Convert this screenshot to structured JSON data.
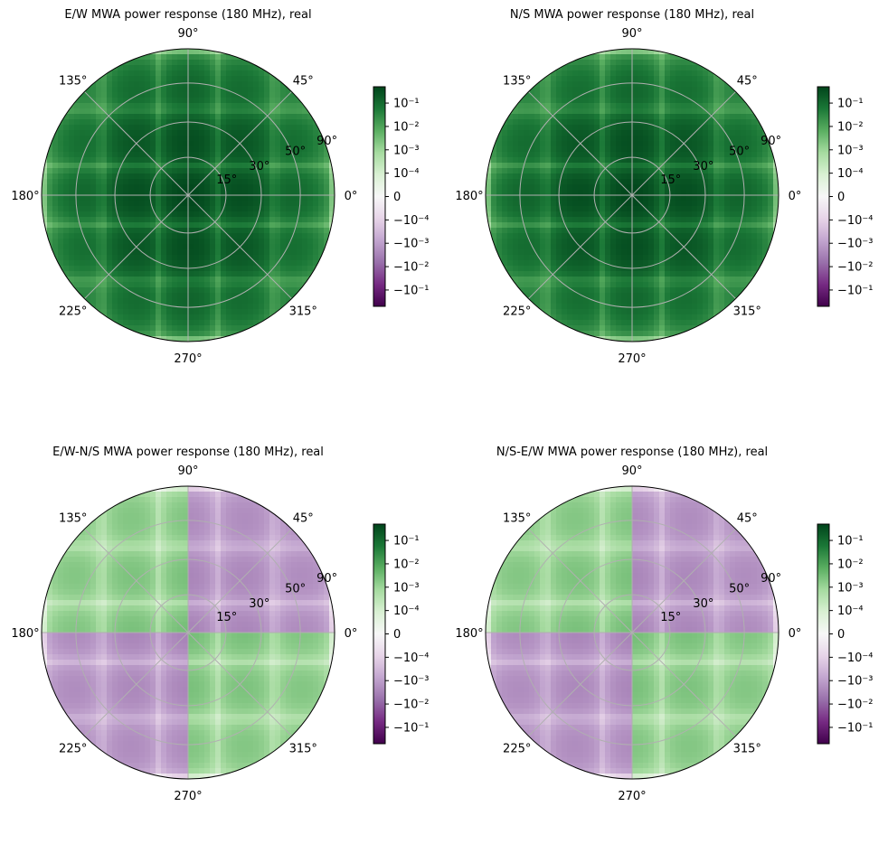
{
  "chart_data": [
    {
      "type": "heatmap",
      "projection": "polar",
      "title": "E/W MWA power response (180 MHz), real",
      "angle_ticks": [
        "90°",
        "135°",
        "180°",
        "225°",
        "270°",
        "315°",
        "0°",
        "45°"
      ],
      "radial_ticks": [
        "15°",
        "30°",
        "50°",
        "90°"
      ],
      "radial_tick_values_deg": [
        15,
        30,
        50,
        90
      ],
      "grid": true,
      "colormap": "PRGn",
      "colorbar": {
        "scale": "symlog",
        "tick_labels": [
          "10⁻¹",
          "10⁻²",
          "10⁻³",
          "10⁻⁴",
          "0",
          "−10⁻⁴",
          "−10⁻³",
          "−10⁻²",
          "−10⁻¹"
        ],
        "tick_values": [
          0.1,
          0.01,
          0.001,
          0.0001,
          0,
          -0.0001,
          -0.001,
          -0.01,
          -0.1
        ],
        "range": [
          -0.5,
          0.5
        ]
      },
      "pattern": "ew_power"
    },
    {
      "type": "heatmap",
      "projection": "polar",
      "title": "N/S MWA power response (180 MHz), real",
      "angle_ticks": [
        "90°",
        "135°",
        "180°",
        "225°",
        "270°",
        "315°",
        "0°",
        "45°"
      ],
      "radial_ticks": [
        "15°",
        "30°",
        "50°",
        "90°"
      ],
      "radial_tick_values_deg": [
        15,
        30,
        50,
        90
      ],
      "grid": true,
      "colormap": "PRGn",
      "colorbar": {
        "scale": "symlog",
        "tick_labels": [
          "10⁻¹",
          "10⁻²",
          "10⁻³",
          "10⁻⁴",
          "0",
          "−10⁻⁴",
          "−10⁻³",
          "−10⁻²",
          "−10⁻¹"
        ],
        "tick_values": [
          0.1,
          0.01,
          0.001,
          0.0001,
          0,
          -0.0001,
          -0.001,
          -0.01,
          -0.1
        ],
        "range": [
          -0.5,
          0.5
        ]
      },
      "pattern": "ns_power"
    },
    {
      "type": "heatmap",
      "projection": "polar",
      "title": "E/W-N/S MWA power response (180 MHz), real",
      "angle_ticks": [
        "90°",
        "135°",
        "180°",
        "225°",
        "270°",
        "315°",
        "0°",
        "45°"
      ],
      "radial_ticks": [
        "15°",
        "30°",
        "50°",
        "90°"
      ],
      "radial_tick_values_deg": [
        15,
        30,
        50,
        90
      ],
      "grid": true,
      "colormap": "PRGn",
      "colorbar": {
        "scale": "symlog",
        "tick_labels": [
          "10⁻¹",
          "10⁻²",
          "10⁻³",
          "10⁻⁴",
          "0",
          "−10⁻⁴",
          "−10⁻³",
          "−10⁻²",
          "−10⁻¹"
        ],
        "tick_values": [
          0.1,
          0.01,
          0.001,
          0.0001,
          0,
          -0.0001,
          -0.001,
          -0.01,
          -0.1
        ],
        "range": [
          -0.5,
          0.5
        ]
      },
      "pattern": "cross_power"
    },
    {
      "type": "heatmap",
      "projection": "polar",
      "title": "N/S-E/W MWA power response (180 MHz), real",
      "angle_ticks": [
        "90°",
        "135°",
        "180°",
        "225°",
        "270°",
        "315°",
        "0°",
        "45°"
      ],
      "radial_ticks": [
        "15°",
        "30°",
        "50°",
        "90°"
      ],
      "radial_tick_values_deg": [
        15,
        30,
        50,
        90
      ],
      "grid": true,
      "colormap": "PRGn",
      "colorbar": {
        "scale": "symlog",
        "tick_labels": [
          "10⁻¹",
          "10⁻²",
          "10⁻³",
          "10⁻⁴",
          "0",
          "−10⁻⁴",
          "−10⁻³",
          "−10⁻²",
          "−10⁻¹"
        ],
        "tick_values": [
          0.1,
          0.01,
          0.001,
          0.0001,
          0,
          -0.0001,
          -0.001,
          -0.01,
          -0.1
        ],
        "range": [
          -0.5,
          0.5
        ]
      },
      "pattern": "cross_power"
    }
  ]
}
